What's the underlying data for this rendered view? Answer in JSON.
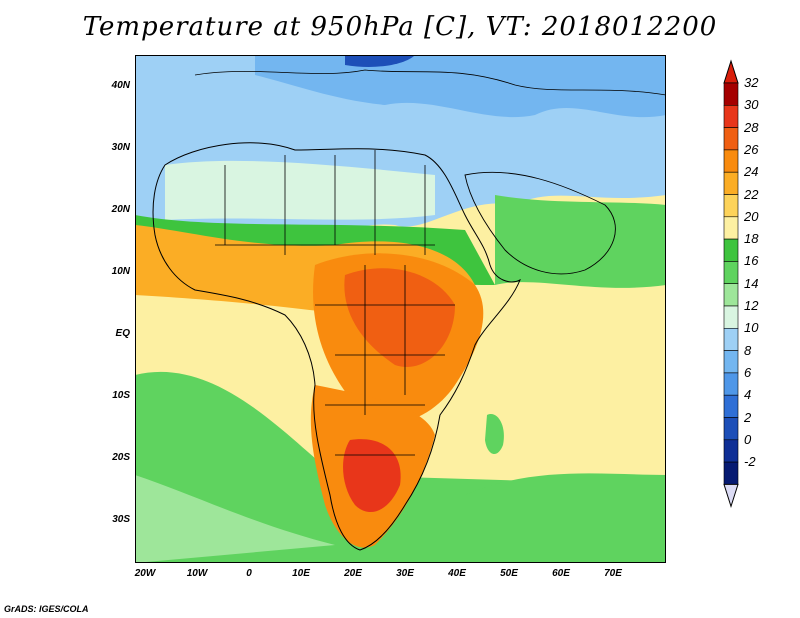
{
  "title": "Temperature at 950hPa [C], VT: 2018012200",
  "footer": "GrADS: IGES/COLA",
  "axes": {
    "lat_labels": [
      "40N",
      "30N",
      "20N",
      "10N",
      "EQ",
      "10S",
      "20S",
      "30S"
    ],
    "lon_labels": [
      "20W",
      "10W",
      "0",
      "10E",
      "20E",
      "30E",
      "40E",
      "50E",
      "60E",
      "70E"
    ]
  },
  "colorbar": {
    "labels": [
      "32",
      "30",
      "28",
      "26",
      "24",
      "22",
      "20",
      "18",
      "16",
      "14",
      "12",
      "10",
      "8",
      "6",
      "4",
      "2",
      "0",
      "-2"
    ],
    "colors": [
      "#a50000",
      "#e8361a",
      "#f05f12",
      "#f98b0e",
      "#fbad25",
      "#fdd35a",
      "#fdf0a2",
      "#3ec43e",
      "#5fd35f",
      "#9ee69a",
      "#d9f5e1",
      "#9ed0f5",
      "#73b6f0",
      "#4f97e8",
      "#2f6fd6",
      "#1d4fb8",
      "#0f2f96",
      "#061a72"
    ],
    "top_arrow_color": "#d91e0b",
    "bottom_arrow_color": "#dcdcf5"
  },
  "regions": {
    "ocean_south_atlantic": "#fdf0a2",
    "ocean_indian": "#fdf0a2",
    "north_africa": "#9ed0f5",
    "sahel": "#5fd35f",
    "central_hot": "#f05f12",
    "southern_hot": "#e8361a",
    "southern_ocean": "#5fd35f",
    "mediterranean": "#73b6f0"
  }
}
